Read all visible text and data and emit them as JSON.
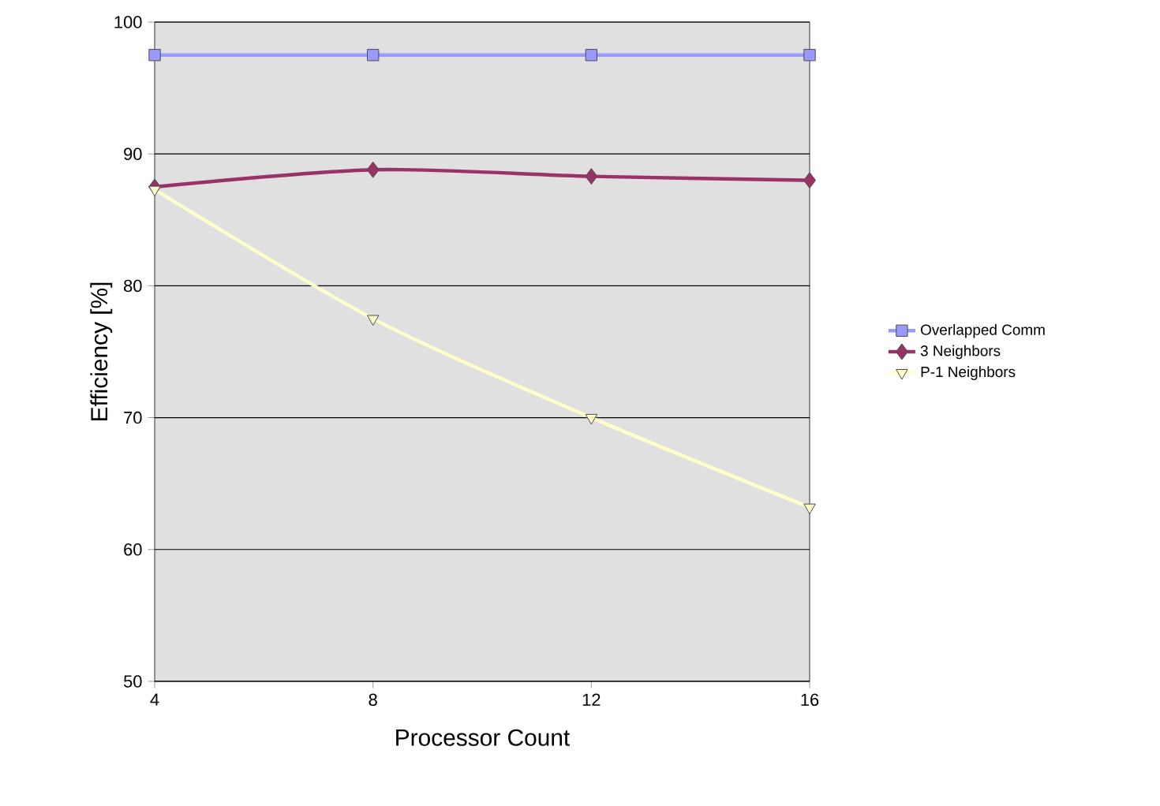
{
  "chart_data": {
    "type": "line",
    "xlabel": "Processor Count",
    "ylabel": "Efficiency [%]",
    "x": [
      4,
      8,
      12,
      16
    ],
    "series": [
      {
        "name": "Overlapped Comm",
        "color": "#9999ff",
        "marker": "square",
        "values": [
          97.5,
          97.5,
          97.5,
          97.5
        ]
      },
      {
        "name": "3 Neighbors",
        "color": "#993366",
        "marker": "diamond",
        "values": [
          87.5,
          88.8,
          88.3,
          88.0
        ]
      },
      {
        "name": "P-1 Neighbors",
        "color": "#ffffcc",
        "marker": "triangle",
        "values": [
          87.3,
          77.5,
          70.0,
          63.2
        ]
      }
    ],
    "xlim": [
      4,
      16
    ],
    "xticks": [
      4,
      8,
      12,
      16
    ],
    "ylim": [
      50,
      100
    ],
    "yticks": [
      50,
      60,
      70,
      80,
      90,
      100
    ],
    "grid": "y",
    "legend": "right"
  }
}
